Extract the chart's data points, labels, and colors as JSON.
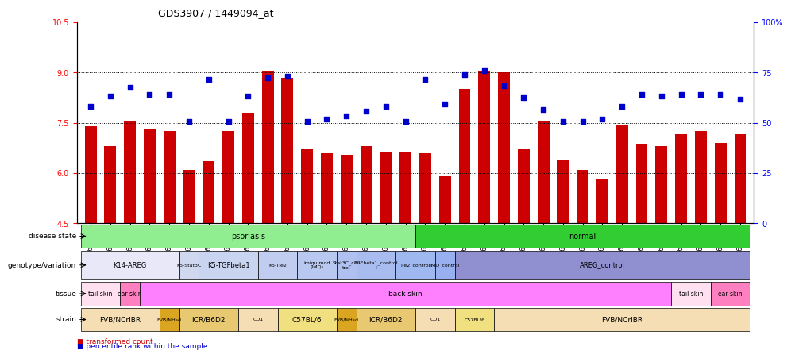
{
  "title": "GDS3907 / 1449094_at",
  "samples": [
    "GSM684694",
    "GSM684695",
    "GSM684696",
    "GSM684688",
    "GSM684689",
    "GSM684690",
    "GSM684700",
    "GSM684701",
    "GSM684704",
    "GSM684705",
    "GSM684706",
    "GSM684676",
    "GSM684677",
    "GSM684678",
    "GSM684682",
    "GSM684683",
    "GSM684684",
    "GSM684702",
    "GSM684703",
    "GSM684707",
    "GSM684708",
    "GSM684709",
    "GSM684679",
    "GSM684680",
    "GSM684681",
    "GSM684685",
    "GSM684686",
    "GSM684687",
    "GSM684697",
    "GSM684698",
    "GSM684699",
    "GSM684691",
    "GSM684692",
    "GSM684693"
  ],
  "bar_values": [
    7.4,
    6.8,
    7.55,
    7.3,
    7.25,
    6.1,
    6.35,
    7.25,
    7.8,
    9.05,
    8.85,
    6.7,
    6.6,
    6.55,
    6.8,
    6.65,
    6.65,
    6.6,
    5.9,
    8.5,
    9.05,
    9.0,
    6.7,
    7.55,
    6.4,
    6.1,
    5.8,
    7.45,
    6.85,
    6.8,
    7.15,
    7.25,
    6.9,
    7.15
  ],
  "scatter_values": [
    8.0,
    8.3,
    8.55,
    8.35,
    8.35,
    7.55,
    8.8,
    7.55,
    8.3,
    8.85,
    8.9,
    7.55,
    7.6,
    7.7,
    7.85,
    8.0,
    7.55,
    8.8,
    8.05,
    8.95,
    9.05,
    8.6,
    8.25,
    7.9,
    7.55,
    7.55,
    7.6,
    8.0,
    8.35,
    8.3,
    8.35,
    8.35,
    8.35,
    8.2
  ],
  "ylim_left": [
    4.5,
    10.5
  ],
  "ylim_right": [
    0,
    100
  ],
  "yticks_left": [
    4.5,
    6.0,
    7.5,
    9.0,
    10.5
  ],
  "yticks_right": [
    0,
    25,
    50,
    75,
    100
  ],
  "hlines": [
    6.0,
    7.5,
    9.0
  ],
  "bar_color": "#cc0000",
  "scatter_color": "#0000cc",
  "disease_state": {
    "psoriasis": {
      "start": 0,
      "end": 17,
      "color": "#90ee90"
    },
    "normal": {
      "start": 17,
      "end": 34,
      "color": "#32cd32"
    }
  },
  "genotype_variation": [
    {
      "label": "K14-AREG",
      "start": 0,
      "end": 5,
      "color": "#e8e8f8"
    },
    {
      "label": "K5-Stat3C",
      "start": 5,
      "end": 6,
      "color": "#d0d8f0"
    },
    {
      "label": "K5-TGFbeta1",
      "start": 6,
      "end": 9,
      "color": "#c8d4f0"
    },
    {
      "label": "K5-Tie2",
      "start": 9,
      "end": 11,
      "color": "#c0ccf0"
    },
    {
      "label": "imiquimod\n(IMQ)",
      "start": 11,
      "end": 13,
      "color": "#b8c8f0"
    },
    {
      "label": "Stat3C_con\ntrol",
      "start": 13,
      "end": 14,
      "color": "#b0c0f0"
    },
    {
      "label": "TGFbeta1_control\nl",
      "start": 14,
      "end": 16,
      "color": "#a8bcf0"
    },
    {
      "label": "Tie2_control",
      "start": 16,
      "end": 18,
      "color": "#a0b8f0"
    },
    {
      "label": "IMQ_control",
      "start": 18,
      "end": 19,
      "color": "#98b0f0"
    },
    {
      "label": "AREG_control",
      "start": 19,
      "end": 34,
      "color": "#9090d0"
    }
  ],
  "tissue": [
    {
      "label": "tail skin",
      "start": 0,
      "end": 2,
      "color": "#ffe0f0"
    },
    {
      "label": "ear skin",
      "start": 2,
      "end": 3,
      "color": "#ff80c0"
    },
    {
      "label": "back skin",
      "start": 3,
      "end": 30,
      "color": "#ff80ff"
    },
    {
      "label": "tail skin",
      "start": 30,
      "end": 32,
      "color": "#ffe0f0"
    },
    {
      "label": "ear skin",
      "start": 32,
      "end": 34,
      "color": "#ff80c0"
    }
  ],
  "strain": [
    {
      "label": "FVB/NCrIBR",
      "start": 0,
      "end": 4,
      "color": "#f5deb3"
    },
    {
      "label": "FVB/NHsd",
      "start": 4,
      "end": 5,
      "color": "#daa520"
    },
    {
      "label": "ICR/B6D2",
      "start": 5,
      "end": 8,
      "color": "#e8c870"
    },
    {
      "label": "CD1",
      "start": 8,
      "end": 10,
      "color": "#f5deb3"
    },
    {
      "label": "C57BL/6",
      "start": 10,
      "end": 13,
      "color": "#f0e080"
    },
    {
      "label": "FVB/NHsd",
      "start": 13,
      "end": 14,
      "color": "#daa520"
    },
    {
      "label": "ICR/B6D2",
      "start": 14,
      "end": 17,
      "color": "#e8c870"
    },
    {
      "label": "CD1",
      "start": 17,
      "end": 19,
      "color": "#f5deb3"
    },
    {
      "label": "C57BL/6",
      "start": 19,
      "end": 21,
      "color": "#f0e080"
    },
    {
      "label": "FVB/NCrIBR",
      "start": 21,
      "end": 34,
      "color": "#f5deb3"
    }
  ],
  "row_labels": [
    "disease state",
    "genotype/variation",
    "tissue",
    "strain"
  ]
}
